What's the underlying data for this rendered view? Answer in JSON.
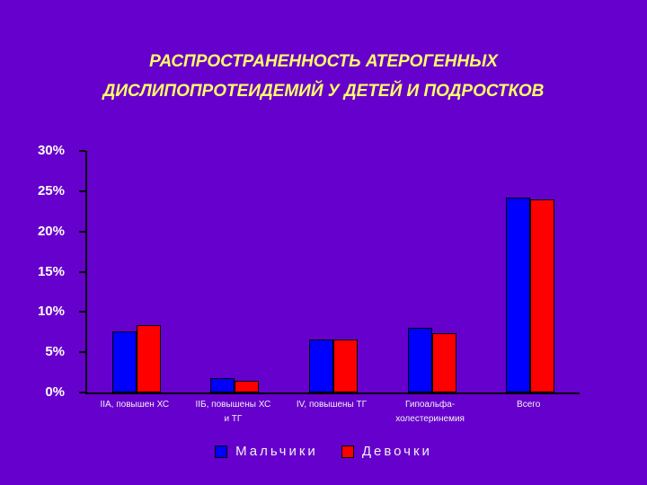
{
  "title": {
    "line1": "РАСПРОСТРАНЕННОСТЬ АТЕРОГЕННЫХ",
    "line2": "ДИСЛИПОПРОТЕИДЕМИЙ У ДЕТЕЙ И ПОДРОСТКОВ"
  },
  "chart_data": {
    "type": "bar",
    "categories": [
      "IIА, повышен ХС",
      "IIБ, повышены ХС\nи ТГ",
      "IV, повышены ТГ",
      "Гипоальфа-\nхолестеринемия",
      "Всего"
    ],
    "series": [
      {
        "name": "Мальчики",
        "color": "#0000FF",
        "values": [
          7.6,
          1.8,
          6.6,
          8.0,
          24.2
        ]
      },
      {
        "name": "Девочки",
        "color": "#FF0000",
        "values": [
          8.4,
          1.5,
          6.6,
          7.4,
          24.0
        ]
      }
    ],
    "ylim": [
      0,
      30
    ],
    "ytick_step": 5,
    "ytick_labels": [
      "0%",
      "5%",
      "10%",
      "15%",
      "20%",
      "25%",
      "30%"
    ],
    "grid": false,
    "legend_position": "bottom"
  },
  "colors": {
    "background": "#6600CC",
    "title": "#FFFF66",
    "axis": "#000000",
    "tick_label": "#FFFFFF",
    "category_label": "#F2F2F2",
    "legend_text": "#F2F2F2"
  }
}
